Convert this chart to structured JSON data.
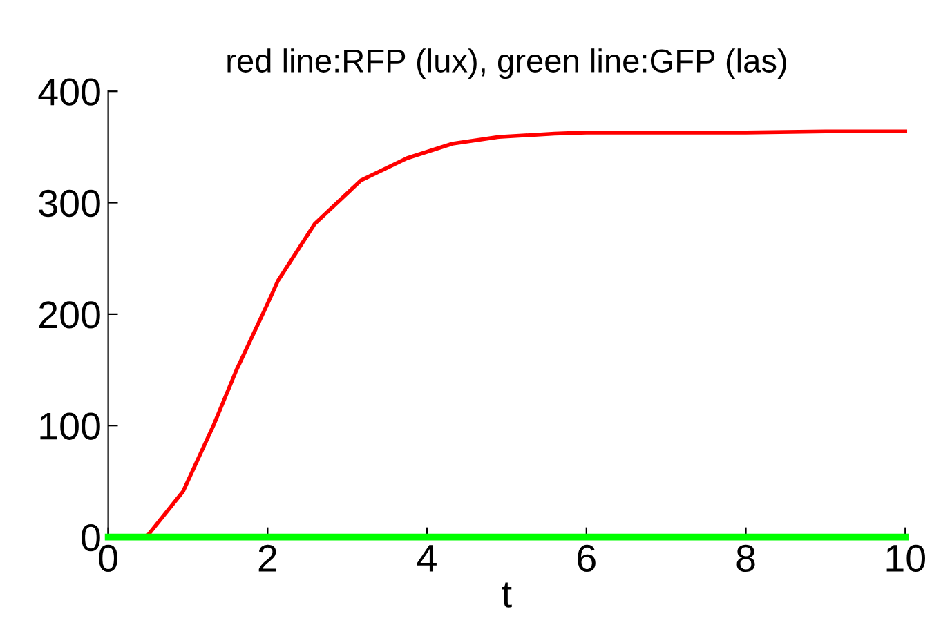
{
  "chart_data": {
    "type": "line",
    "title": "red line:RFP (lux), green line:GFP (las)",
    "xlabel": "t",
    "series": [
      {
        "color": "#ff0000",
        "x": [
          0,
          0.3,
          0.48,
          0.94,
          1.32,
          1.61,
          2.01,
          2.13,
          2.59,
          3.17,
          3.75,
          4.32,
          4.9,
          5.6,
          6,
          7,
          8,
          9,
          10
        ],
        "values": [
          0,
          0,
          0,
          41,
          100,
          150,
          211,
          230,
          281,
          320,
          340,
          353,
          359,
          362,
          363,
          363,
          363,
          364,
          364
        ]
      },
      {
        "color": "#00ff00",
        "x": [
          0,
          10
        ],
        "values": [
          0,
          0
        ]
      }
    ],
    "xlim": [
      0,
      10
    ],
    "xticks": [
      0,
      2,
      4,
      6,
      8,
      10
    ],
    "ylim": [
      0,
      400
    ],
    "yticks": [
      0,
      100,
      200,
      300,
      400
    ],
    "grid": false,
    "legend": false
  }
}
